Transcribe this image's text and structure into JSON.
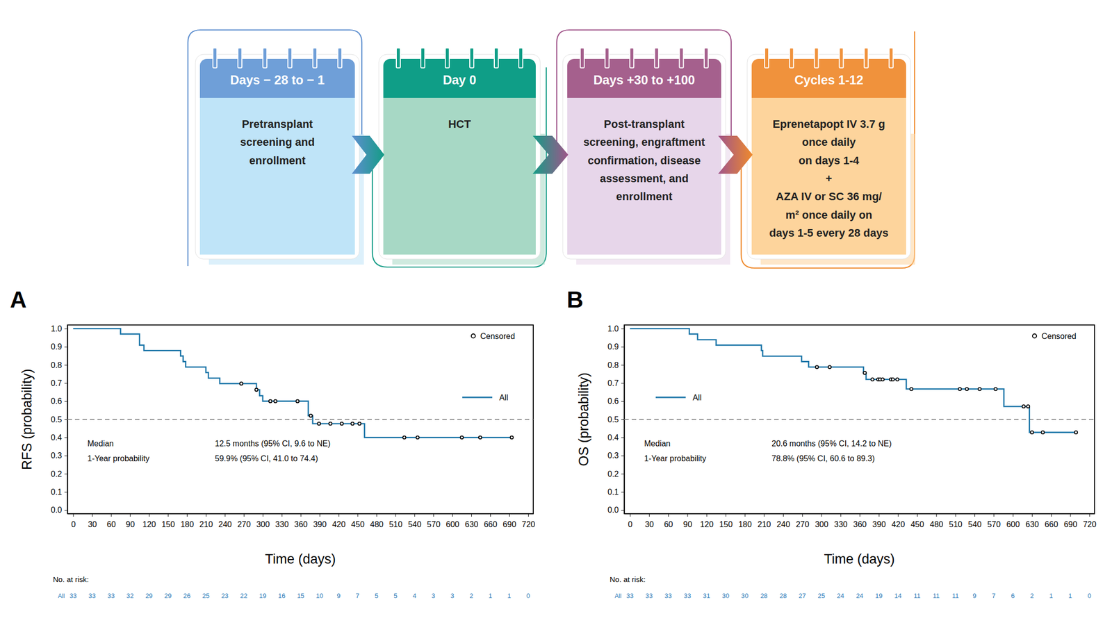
{
  "diagram": {
    "steps": [
      {
        "header": "Days − 28 to − 1",
        "body": [
          "Pretransplant",
          "screening and",
          "enrollment"
        ]
      },
      {
        "header": "Day 0",
        "body": [
          "HCT"
        ]
      },
      {
        "header": "Days +30 to +100",
        "body": [
          "Post-transplant",
          "screening, engraftment",
          "confirmation, disease",
          "assessment, and",
          "enrollment"
        ]
      },
      {
        "header": "Cycles 1-12",
        "body": [
          "Eprenetapopt IV 3.7 g",
          "once daily",
          "on days 1-4",
          "+",
          "AZA IV or SC 36 mg/",
          "m² once daily on",
          "days 1-5 every 28 days"
        ]
      }
    ]
  },
  "chart_data": [
    {
      "type": "step",
      "panel_label": "A",
      "x_label": "Time (days)",
      "y_label": "RFS (probability)",
      "xlim": [
        -9,
        728
      ],
      "xticks": [
        0,
        30,
        60,
        90,
        120,
        150,
        180,
        210,
        240,
        270,
        300,
        330,
        360,
        390,
        420,
        450,
        480,
        510,
        540,
        570,
        600,
        630,
        660,
        690,
        720
      ],
      "ylim": [
        -0.02,
        1.02
      ],
      "yticks": [
        {
          "value": 0,
          "label": "0.0"
        },
        0.1,
        0.2,
        0.3,
        0.4,
        0.5,
        0.6,
        0.7,
        0.8,
        0.9,
        {
          "value": 1,
          "label": "1.0"
        }
      ],
      "series": [
        {
          "name": "All",
          "color": "#1b75a8",
          "x": [
            0,
            75,
            105,
            112,
            170,
            174,
            178,
            210,
            214,
            232,
            290,
            295,
            300,
            372,
            379,
            461,
            694
          ],
          "values": [
            1,
            0.97,
            0.909,
            0.879,
            0.849,
            0.818,
            0.788,
            0.758,
            0.727,
            0.697,
            0.663,
            0.63,
            0.6,
            0.52,
            0.476,
            0.4,
            0.4
          ]
        },
        {
          "name": "Censored",
          "type": "scatter",
          "marker": "circle",
          "color": "#000000",
          "x": [
            266,
            290,
            312,
            320,
            355,
            376,
            389,
            407,
            425,
            442,
            453,
            524,
            545,
            615,
            644,
            694
          ],
          "values": [
            0.697,
            0.663,
            0.6,
            0.6,
            0.6,
            0.52,
            0.476,
            0.476,
            0.476,
            0.476,
            0.476,
            0.4,
            0.4,
            0.4,
            0.4,
            0.4
          ]
        }
      ],
      "legend": "right",
      "reference_line": {
        "y": 0.5,
        "line_style": "dashed"
      },
      "annotations": [
        {
          "label": "Median",
          "text": "12.5 months (95% CI, 9.6 to NE)"
        },
        {
          "label": "1-Year probability",
          "text": "59.9% (95% CI, 41.0 to 74.4)"
        }
      ],
      "risk_table": {
        "title": "No. at risk:",
        "label": "All",
        "x": [
          0,
          30,
          60,
          90,
          120,
          150,
          180,
          210,
          240,
          270,
          300,
          330,
          360,
          390,
          420,
          450,
          480,
          510,
          540,
          570,
          600,
          630,
          660,
          690,
          720
        ],
        "values": [
          33,
          33,
          33,
          32,
          29,
          29,
          26,
          25,
          23,
          22,
          19,
          16,
          15,
          10,
          9,
          7,
          5,
          5,
          4,
          3,
          3,
          2,
          1,
          1,
          0
        ]
      }
    },
    {
      "type": "step",
      "panel_label": "B",
      "x_label": "Time (days)",
      "y_label": "OS (probability)",
      "xlim": [
        -9,
        728
      ],
      "xticks": [
        0,
        30,
        60,
        90,
        120,
        150,
        180,
        210,
        240,
        270,
        300,
        330,
        360,
        390,
        420,
        450,
        480,
        510,
        540,
        570,
        600,
        630,
        660,
        690,
        720
      ],
      "ylim": [
        -0.02,
        1.02
      ],
      "yticks": [
        {
          "value": 0,
          "label": "0.0"
        },
        0.1,
        0.2,
        0.3,
        0.4,
        0.5,
        0.6,
        0.7,
        0.8,
        0.9,
        {
          "value": 1,
          "label": "1.0"
        }
      ],
      "series": [
        {
          "name": "All",
          "color": "#1b75a8",
          "x": [
            0,
            93,
            106,
            135,
            206,
            208,
            269,
            280,
            366,
            370,
            433,
            586,
            626,
            699
          ],
          "values": [
            1,
            0.97,
            0.939,
            0.909,
            0.879,
            0.848,
            0.818,
            0.788,
            0.756,
            0.72,
            0.667,
            0.571,
            0.428,
            0.428
          ]
        },
        {
          "name": "Censored",
          "type": "scatter",
          "marker": "circle",
          "color": "#000000",
          "x": [
            293,
            313,
            368,
            380,
            389,
            392,
            396,
            409,
            412,
            419,
            441,
            517,
            528,
            548,
            573,
            617,
            624,
            630,
            647,
            699
          ],
          "values": [
            0.788,
            0.788,
            0.756,
            0.72,
            0.72,
            0.72,
            0.72,
            0.72,
            0.72,
            0.72,
            0.667,
            0.667,
            0.667,
            0.667,
            0.667,
            0.571,
            0.571,
            0.428,
            0.428,
            0.428
          ]
        }
      ],
      "legend": "left",
      "reference_line": {
        "y": 0.5,
        "line_style": "dashed"
      },
      "annotations": [
        {
          "label": "Median",
          "text": "20.6 months (95% CI, 14.2 to NE)"
        },
        {
          "label": "1-Year probability",
          "text": "78.8% (95% CI, 60.6 to 89.3)"
        }
      ],
      "risk_table": {
        "title": "No. at risk:",
        "label": "All",
        "x": [
          0,
          30,
          60,
          90,
          120,
          150,
          180,
          210,
          240,
          270,
          300,
          330,
          360,
          390,
          420,
          450,
          480,
          510,
          540,
          570,
          600,
          630,
          660,
          690,
          720
        ],
        "values": [
          33,
          33,
          33,
          33,
          31,
          30,
          30,
          28,
          28,
          27,
          25,
          24,
          24,
          19,
          14,
          11,
          11,
          11,
          9,
          7,
          6,
          2,
          1,
          1,
          0
        ]
      }
    }
  ]
}
